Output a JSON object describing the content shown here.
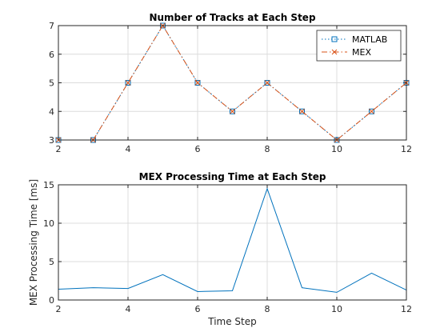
{
  "chart_data": [
    {
      "type": "line",
      "title": "Number of Tracks at Each Step",
      "xlabel": "",
      "ylabel": "",
      "xlim": [
        2,
        12
      ],
      "ylim": [
        3,
        7
      ],
      "xticks": [
        2,
        4,
        6,
        8,
        10,
        12
      ],
      "yticks": [
        3,
        4,
        5,
        6,
        7
      ],
      "grid": true,
      "legend": "top-right",
      "x": [
        2,
        3,
        4,
        5,
        6,
        7,
        8,
        9,
        10,
        11,
        12
      ],
      "series": [
        {
          "name": "MATLAB",
          "values": [
            3,
            3,
            5,
            7,
            5,
            4,
            5,
            4,
            3,
            4,
            5
          ],
          "color": "#0072bd",
          "line": "dotted",
          "marker": "square"
        },
        {
          "name": "MEX",
          "values": [
            3,
            3,
            5,
            7,
            5,
            4,
            5,
            4,
            3,
            4,
            5
          ],
          "color": "#d95319",
          "line": "dash-dot",
          "marker": "x"
        }
      ]
    },
    {
      "type": "line",
      "title": "MEX Processing Time at Each Step",
      "xlabel": "Time Step",
      "ylabel": "MEX Processing Time [ms]",
      "xlim": [
        2,
        12
      ],
      "ylim": [
        0,
        15
      ],
      "xticks": [
        2,
        4,
        6,
        8,
        10,
        12
      ],
      "yticks": [
        0,
        5,
        10,
        15
      ],
      "grid": true,
      "x": [
        2,
        3,
        4,
        5,
        6,
        7,
        8,
        9,
        10,
        11,
        12
      ],
      "series": [
        {
          "values": [
            1.4,
            1.6,
            1.5,
            3.3,
            1.1,
            1.2,
            14.5,
            1.6,
            1.0,
            3.5,
            1.3
          ],
          "color": "#0072bd",
          "line": "solid"
        }
      ]
    }
  ]
}
